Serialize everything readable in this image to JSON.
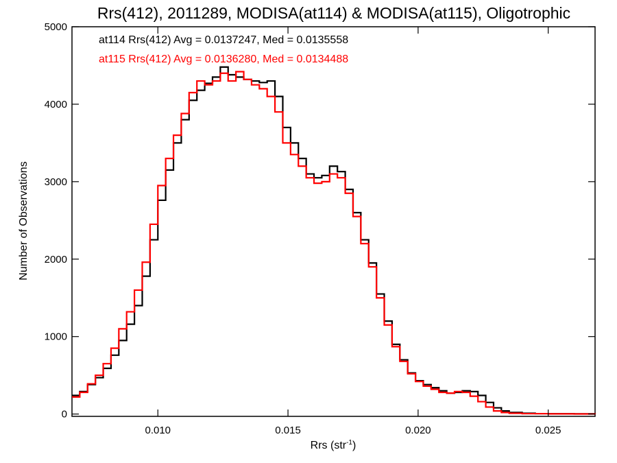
{
  "chart_data": {
    "type": "line",
    "title": "Rrs(412), 2011289, MODISA(at114) & MODISA(at115), Oligotrophic",
    "xlabel": "Rrs (str",
    "xlabel_superscript": "-1",
    "xlabel_close": ")",
    "ylabel": "Number of Observations",
    "xlim": [
      0.0067,
      0.0268
    ],
    "ylim": [
      -30,
      5000
    ],
    "x_ticks": [
      0.01,
      0.015,
      0.02,
      0.025
    ],
    "x_tick_labels": [
      "0.010",
      "0.015",
      "0.020",
      "0.025"
    ],
    "y_ticks": [
      0,
      1000,
      2000,
      3000,
      4000,
      5000
    ],
    "y_tick_labels": [
      "0",
      "1000",
      "2000",
      "3000",
      "4000",
      "5000"
    ],
    "grid": false,
    "legend_position": "top-left",
    "series": [
      {
        "name": "at114",
        "label": "at114 Rrs(412) Avg = 0.0137247, Med = 0.0135558",
        "color": "#000000",
        "step": true,
        "points": [
          [
            0.0067,
            240
          ],
          [
            0.007,
            290
          ],
          [
            0.0073,
            380
          ],
          [
            0.0076,
            470
          ],
          [
            0.0079,
            590
          ],
          [
            0.0082,
            760
          ],
          [
            0.0085,
            950
          ],
          [
            0.0088,
            1160
          ],
          [
            0.0091,
            1400
          ],
          [
            0.0094,
            1780
          ],
          [
            0.0097,
            2250
          ],
          [
            0.01,
            2760
          ],
          [
            0.0103,
            3150
          ],
          [
            0.0106,
            3500
          ],
          [
            0.0109,
            3800
          ],
          [
            0.0112,
            4050
          ],
          [
            0.0115,
            4180
          ],
          [
            0.0118,
            4270
          ],
          [
            0.0121,
            4350
          ],
          [
            0.0124,
            4480
          ],
          [
            0.0127,
            4380
          ],
          [
            0.013,
            4350
          ],
          [
            0.0133,
            4320
          ],
          [
            0.0136,
            4300
          ],
          [
            0.0139,
            4280
          ],
          [
            0.0142,
            4300
          ],
          [
            0.0145,
            4100
          ],
          [
            0.0148,
            3700
          ],
          [
            0.0151,
            3500
          ],
          [
            0.0154,
            3300
          ],
          [
            0.0157,
            3100
          ],
          [
            0.016,
            3050
          ],
          [
            0.0163,
            3080
          ],
          [
            0.0166,
            3200
          ],
          [
            0.0169,
            3130
          ],
          [
            0.0172,
            2900
          ],
          [
            0.0175,
            2600
          ],
          [
            0.0178,
            2250
          ],
          [
            0.0181,
            1950
          ],
          [
            0.0184,
            1550
          ],
          [
            0.0187,
            1200
          ],
          [
            0.019,
            900
          ],
          [
            0.0193,
            700
          ],
          [
            0.0196,
            530
          ],
          [
            0.0199,
            430
          ],
          [
            0.0202,
            380
          ],
          [
            0.0205,
            340
          ],
          [
            0.0208,
            300
          ],
          [
            0.0211,
            270
          ],
          [
            0.0214,
            280
          ],
          [
            0.0217,
            300
          ],
          [
            0.022,
            290
          ],
          [
            0.0223,
            240
          ],
          [
            0.0226,
            150
          ],
          [
            0.0229,
            80
          ],
          [
            0.0232,
            40
          ],
          [
            0.0235,
            20
          ],
          [
            0.024,
            10
          ],
          [
            0.0245,
            5
          ],
          [
            0.025,
            3
          ],
          [
            0.026,
            2
          ],
          [
            0.0268,
            0
          ]
        ]
      },
      {
        "name": "at115",
        "label": "at115 Rrs(412) Avg = 0.0136280, Med = 0.0134488",
        "color": "#ff0000",
        "step": true,
        "points": [
          [
            0.0067,
            220
          ],
          [
            0.007,
            280
          ],
          [
            0.0073,
            390
          ],
          [
            0.0076,
            500
          ],
          [
            0.0079,
            650
          ],
          [
            0.0082,
            850
          ],
          [
            0.0085,
            1100
          ],
          [
            0.0088,
            1320
          ],
          [
            0.0091,
            1600
          ],
          [
            0.0094,
            1960
          ],
          [
            0.0097,
            2450
          ],
          [
            0.01,
            2950
          ],
          [
            0.0103,
            3300
          ],
          [
            0.0106,
            3600
          ],
          [
            0.0109,
            3880
          ],
          [
            0.0112,
            4150
          ],
          [
            0.0115,
            4300
          ],
          [
            0.0118,
            4250
          ],
          [
            0.0121,
            4300
          ],
          [
            0.0124,
            4400
          ],
          [
            0.0127,
            4300
          ],
          [
            0.013,
            4420
          ],
          [
            0.0133,
            4320
          ],
          [
            0.0136,
            4250
          ],
          [
            0.0139,
            4200
          ],
          [
            0.0142,
            4100
          ],
          [
            0.0145,
            3900
          ],
          [
            0.0148,
            3500
          ],
          [
            0.0151,
            3350
          ],
          [
            0.0154,
            3200
          ],
          [
            0.0157,
            3050
          ],
          [
            0.016,
            2980
          ],
          [
            0.0163,
            3000
          ],
          [
            0.0166,
            3100
          ],
          [
            0.0169,
            3050
          ],
          [
            0.0172,
            2850
          ],
          [
            0.0175,
            2550
          ],
          [
            0.0178,
            2200
          ],
          [
            0.0181,
            1900
          ],
          [
            0.0184,
            1500
          ],
          [
            0.0187,
            1150
          ],
          [
            0.019,
            870
          ],
          [
            0.0193,
            680
          ],
          [
            0.0196,
            520
          ],
          [
            0.0199,
            420
          ],
          [
            0.0202,
            360
          ],
          [
            0.0205,
            320
          ],
          [
            0.0208,
            280
          ],
          [
            0.0211,
            270
          ],
          [
            0.0214,
            290
          ],
          [
            0.0217,
            280
          ],
          [
            0.022,
            230
          ],
          [
            0.0223,
            160
          ],
          [
            0.0226,
            90
          ],
          [
            0.0229,
            40
          ],
          [
            0.0232,
            20
          ],
          [
            0.0235,
            10
          ],
          [
            0.024,
            5
          ],
          [
            0.025,
            2
          ],
          [
            0.026,
            1
          ],
          [
            0.0268,
            0
          ]
        ]
      }
    ]
  }
}
